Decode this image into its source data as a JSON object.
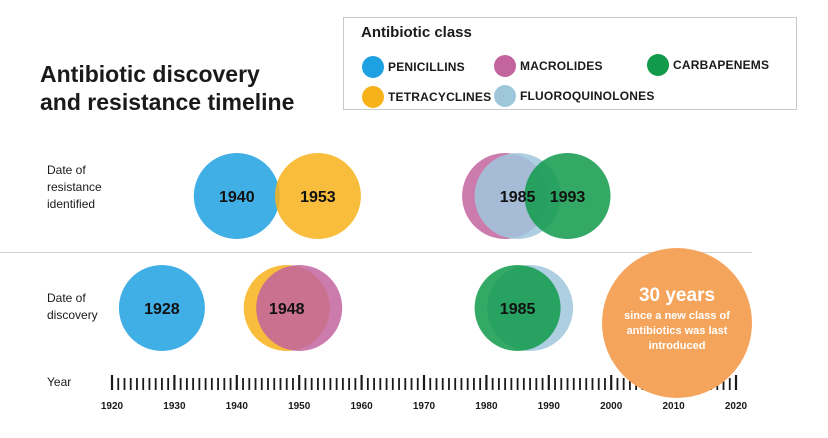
{
  "title": {
    "line1": "Antibiotic discovery",
    "line2": "and resistance timeline"
  },
  "legend": {
    "title": "Antibiotic class",
    "items": [
      {
        "key": "penicillins",
        "label": "PENICILLINS",
        "color": "#1ea1e2"
      },
      {
        "key": "macrolides",
        "label": "MACROLIDES",
        "color": "#c3649f"
      },
      {
        "key": "carbapenems",
        "label": "CARBAPENEMS",
        "color": "#119a4a"
      },
      {
        "key": "tetracyclines",
        "label": "TETRACYCLINES",
        "color": "#f7b21a"
      },
      {
        "key": "fluoroquinolones",
        "label": "FLUOROQUINOLONES",
        "color": "#9fc7dc"
      }
    ]
  },
  "rows": {
    "resistance": "Date of resistance identified",
    "discovery": "Date of discovery"
  },
  "axis": {
    "label": "Year",
    "min": 1920,
    "max": 2020,
    "ticks": [
      1920,
      1930,
      1940,
      1950,
      1960,
      1970,
      1980,
      1990,
      2000,
      2010,
      2020
    ]
  },
  "chart_data": {
    "type": "scatter",
    "title": "Antibiotic discovery and resistance timeline",
    "xlabel": "Year",
    "xlim": [
      1920,
      2020
    ],
    "grid": false,
    "legend_position": "top-right",
    "series": [
      {
        "name": "PENICILLINS",
        "color": "#1ea1e2",
        "discovery": 1928,
        "resistance": 1940,
        "discovery_label": "1928",
        "resistance_label": "1940"
      },
      {
        "name": "TETRACYCLINES",
        "color": "#f7b21a",
        "discovery": 1948,
        "resistance": 1953,
        "discovery_label": "1948",
        "resistance_label": "1953"
      },
      {
        "name": "MACROLIDES",
        "color": "#c3649f",
        "discovery": 1950,
        "resistance": 1983,
        "discovery_label": "",
        "resistance_label": ""
      },
      {
        "name": "FLUOROQUINOLONES",
        "color": "#9fc7dc",
        "discovery": 1987,
        "resistance": 1985,
        "discovery_label": "",
        "resistance_label": "1985"
      },
      {
        "name": "CARBAPENEMS",
        "color": "#119a4a",
        "discovery": 1985,
        "resistance": 1993,
        "discovery_label": "1985",
        "resistance_label": "1993"
      }
    ],
    "annotation": {
      "headline": "30 years",
      "text": "since a new class of antibiotics was last introduced",
      "year": 2010
    }
  }
}
